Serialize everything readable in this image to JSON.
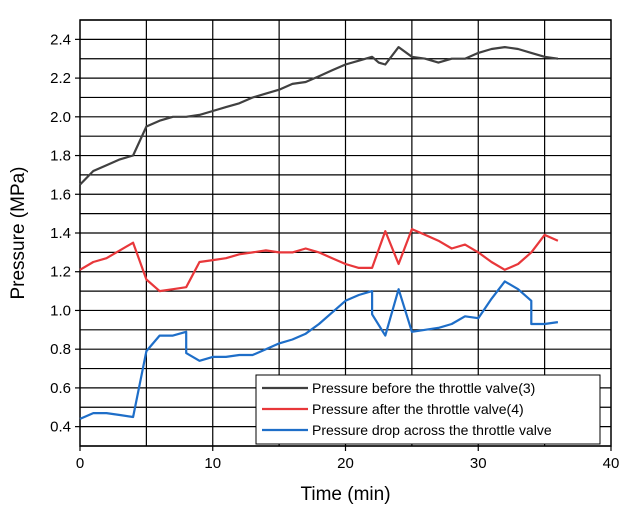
{
  "chart_data": {
    "type": "line",
    "xlabel": "Time (min)",
    "ylabel": "Pressure (MPa)",
    "xlim": [
      0,
      40
    ],
    "ylim": [
      0.3,
      2.5
    ],
    "xticks": [
      0,
      10,
      20,
      30,
      40
    ],
    "xtick_labels": [
      "0",
      "10",
      "20",
      "30",
      "40"
    ],
    "yticks": [
      0.4,
      0.6,
      0.8,
      1.0,
      1.2,
      1.4,
      1.6,
      1.8,
      2.0,
      2.2,
      2.4
    ],
    "ytick_labels": [
      "0.4",
      "0.6",
      "0.8",
      "1.0",
      "1.2",
      "1.4",
      "1.6",
      "1.8",
      "2.0",
      "2.2",
      "2.4"
    ],
    "grid": true,
    "legend_position": "bottom-right",
    "series": [
      {
        "name": "Pressure before the throttle valve(3)",
        "color": "#404040",
        "x": [
          0,
          1,
          2,
          3,
          4,
          5,
          6,
          7,
          8,
          9,
          10,
          11,
          12,
          13,
          14,
          15,
          16,
          17,
          18,
          19,
          20,
          21,
          22,
          22.5,
          23,
          24,
          25,
          26,
          27,
          28,
          29,
          30,
          31,
          32,
          33,
          34,
          35,
          36
        ],
        "y": [
          1.65,
          1.72,
          1.75,
          1.78,
          1.8,
          1.95,
          1.98,
          2.0,
          2.0,
          2.01,
          2.03,
          2.05,
          2.07,
          2.1,
          2.12,
          2.14,
          2.17,
          2.18,
          2.21,
          2.24,
          2.27,
          2.29,
          2.31,
          2.28,
          2.27,
          2.36,
          2.31,
          2.3,
          2.28,
          2.3,
          2.3,
          2.33,
          2.35,
          2.36,
          2.35,
          2.33,
          2.31,
          2.3
        ]
      },
      {
        "name": "Pressure after the throttle valve(4)",
        "color": "#e8373a",
        "x": [
          0,
          1,
          2,
          3,
          4,
          5,
          6,
          7,
          8,
          9,
          10,
          11,
          12,
          13,
          14,
          15,
          16,
          17,
          18,
          19,
          20,
          21,
          22,
          23,
          24,
          25,
          26,
          27,
          28,
          29,
          30,
          31,
          32,
          33,
          34,
          35,
          36
        ],
        "y": [
          1.21,
          1.25,
          1.27,
          1.31,
          1.35,
          1.16,
          1.1,
          1.11,
          1.12,
          1.25,
          1.26,
          1.27,
          1.29,
          1.3,
          1.31,
          1.3,
          1.3,
          1.32,
          1.3,
          1.27,
          1.24,
          1.22,
          1.22,
          1.41,
          1.24,
          1.42,
          1.39,
          1.36,
          1.32,
          1.34,
          1.3,
          1.25,
          1.21,
          1.24,
          1.3,
          1.39,
          1.36
        ]
      },
      {
        "name": "Pressure drop across the throttle valve",
        "color": "#1e6ec8",
        "x": [
          0,
          1,
          2,
          3,
          4,
          5,
          6,
          7,
          8,
          8,
          9,
          10,
          11,
          12,
          13,
          14,
          15,
          16,
          17,
          18,
          19,
          20,
          21,
          22,
          22,
          23,
          24,
          25,
          26,
          27,
          28,
          29,
          30,
          31,
          32,
          33,
          34,
          34,
          35,
          36
        ],
        "y": [
          0.44,
          0.47,
          0.47,
          0.46,
          0.45,
          0.79,
          0.87,
          0.87,
          0.89,
          0.78,
          0.74,
          0.76,
          0.76,
          0.77,
          0.77,
          0.8,
          0.83,
          0.85,
          0.88,
          0.93,
          0.99,
          1.05,
          1.08,
          1.1,
          0.98,
          0.87,
          1.11,
          0.89,
          0.9,
          0.91,
          0.93,
          0.97,
          0.96,
          1.06,
          1.15,
          1.11,
          1.05,
          0.93,
          0.93,
          0.94
        ]
      }
    ]
  }
}
